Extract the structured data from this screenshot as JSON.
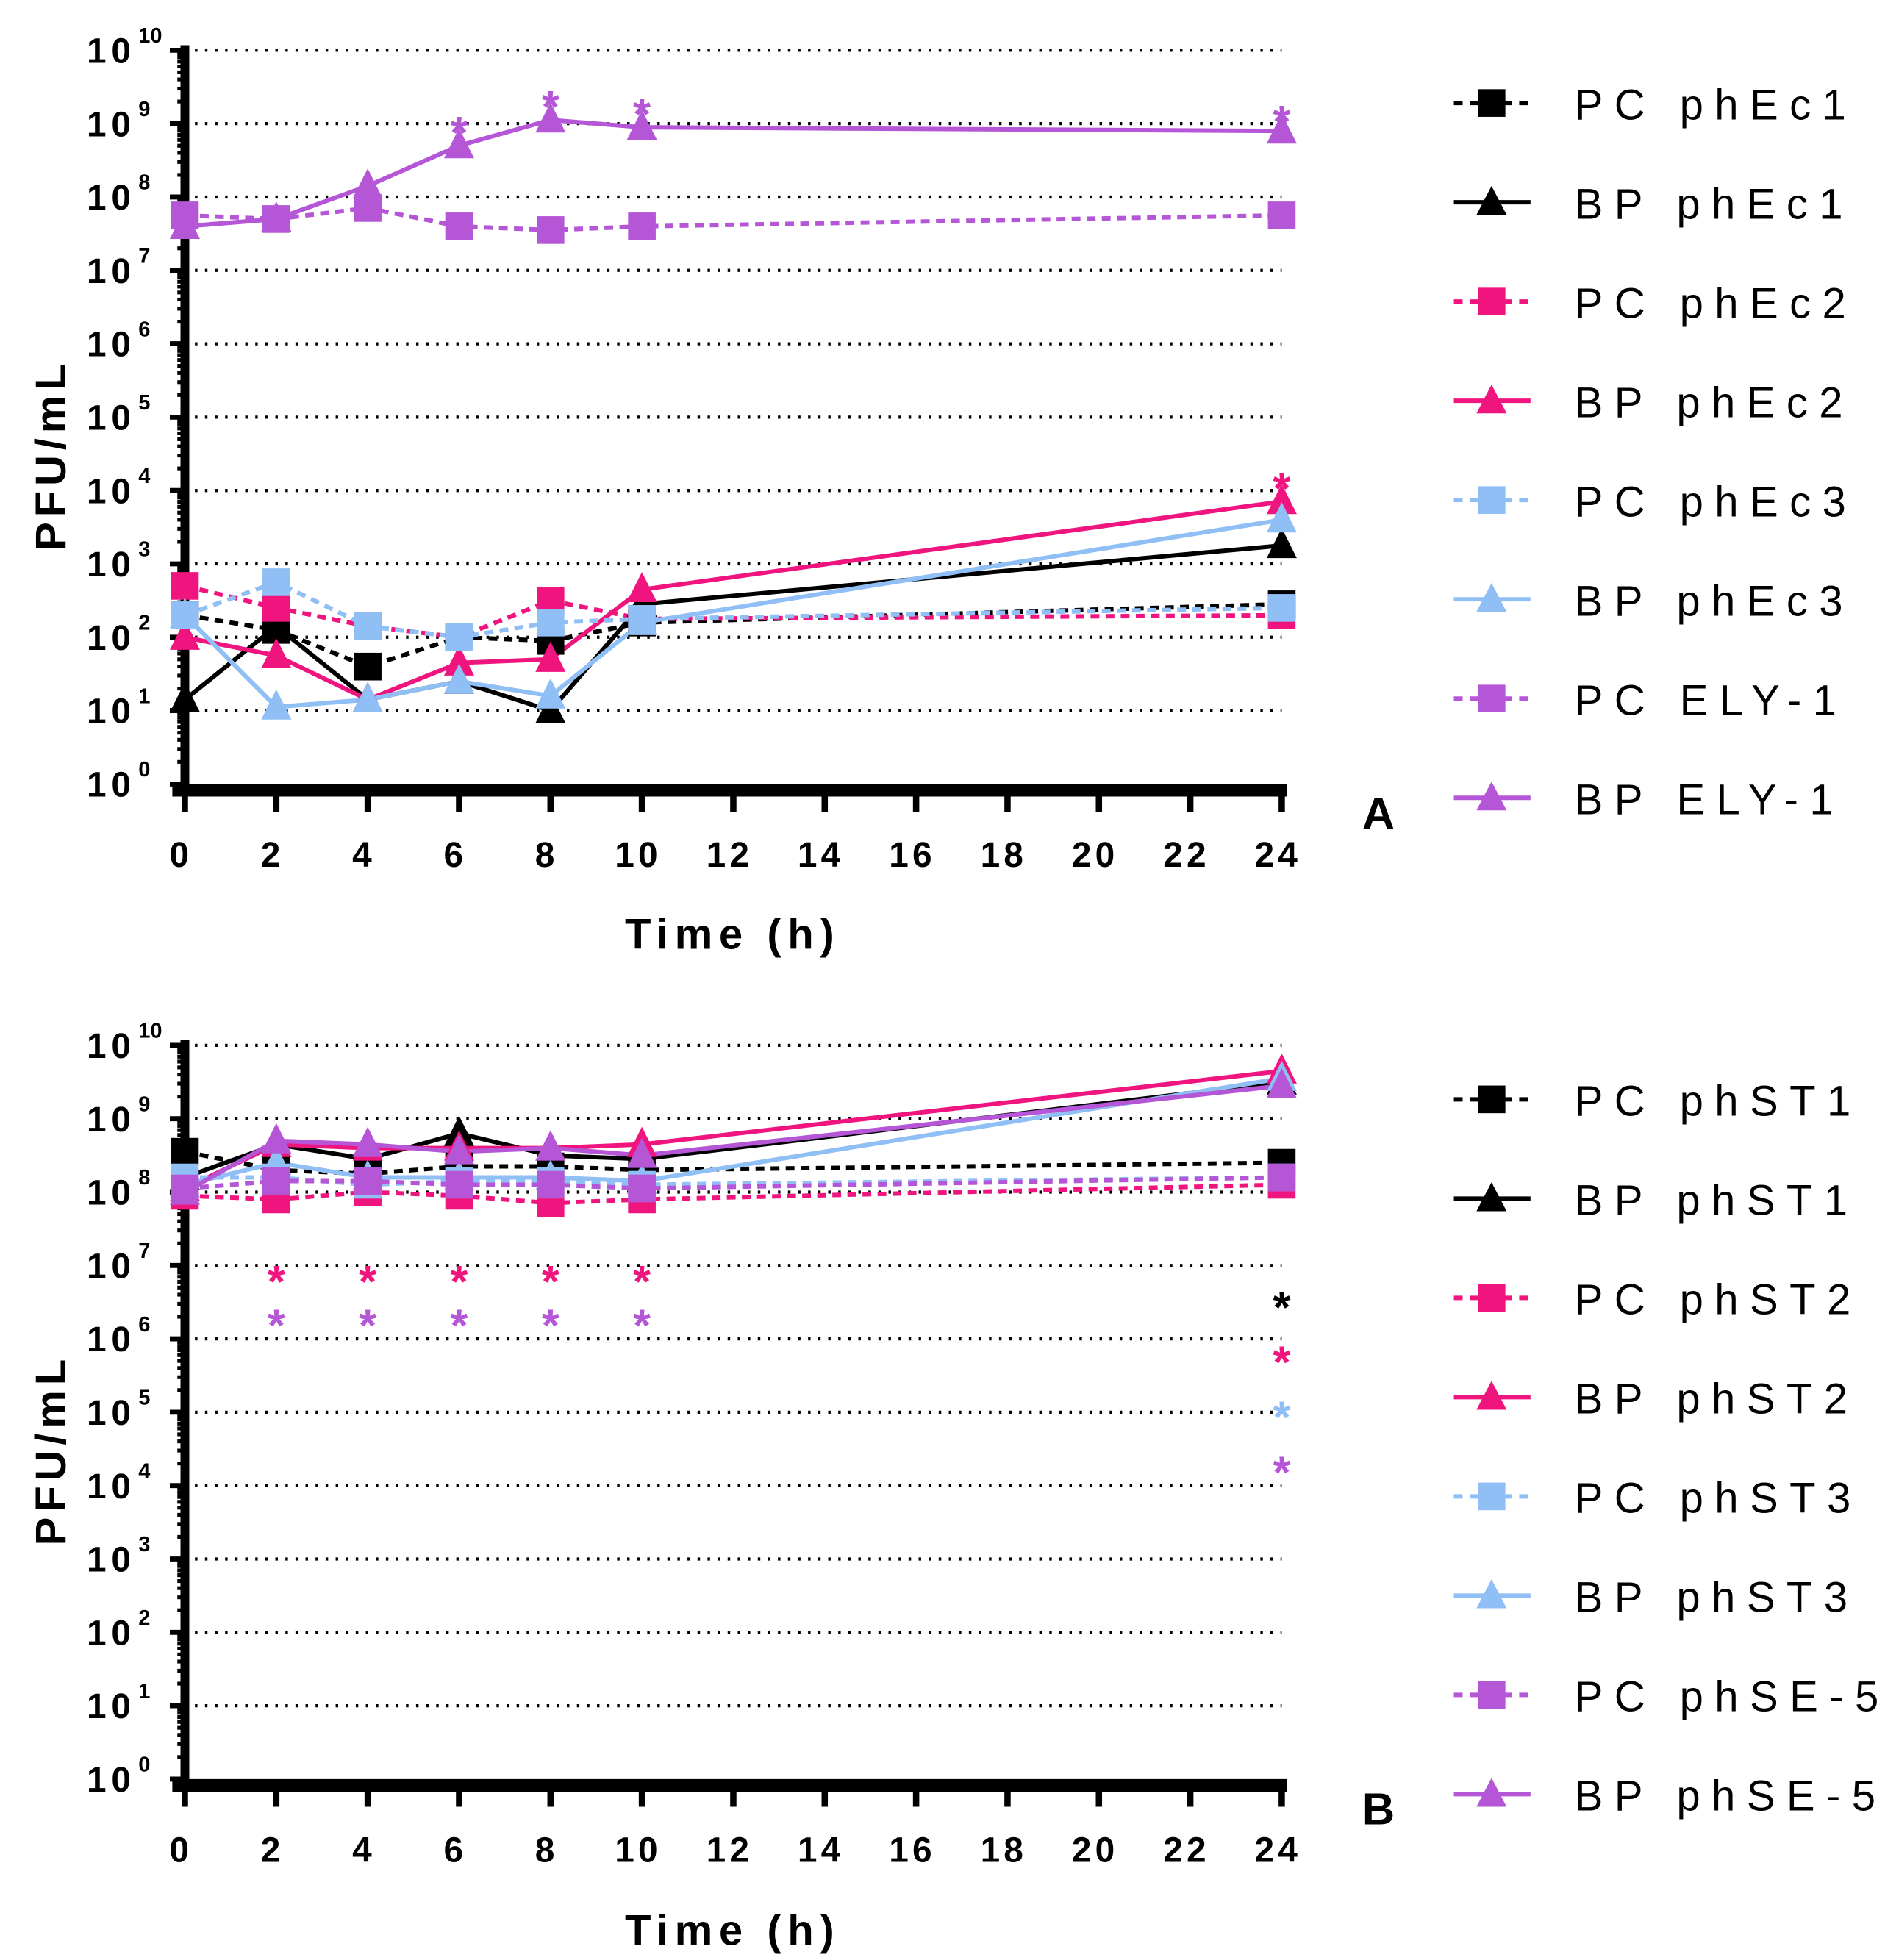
{
  "colors": {
    "black": "#000000",
    "pink": "#f0147f",
    "blue": "#8fbff5",
    "purple": "#b456d6"
  },
  "chart_data": [
    {
      "type": "line",
      "panel_label": "A",
      "xlabel": "Time (h)",
      "ylabel": "PFU/mL",
      "yscale": "log10",
      "ylim_exponent": [
        0,
        10
      ],
      "xlim": [
        0,
        24
      ],
      "x_ticks": [
        "0",
        "2",
        "4",
        "6",
        "8",
        "10",
        "12",
        "14",
        "16",
        "18",
        "20",
        "22",
        "24"
      ],
      "y_tick_base": "10",
      "y_tick_exponents": [
        "0",
        "1",
        "2",
        "3",
        "4",
        "5",
        "6",
        "7",
        "8",
        "9",
        "10"
      ],
      "grid": "horizontal dotted at each decade",
      "legend_placement": "right",
      "x": [
        0,
        2,
        4,
        6,
        8,
        10,
        24
      ],
      "series": [
        {
          "name": "PC phEc1",
          "color": "#000000",
          "marker": "square",
          "dashed": true,
          "log10_values": [
            2.3,
            2.1,
            1.6,
            2.0,
            1.95,
            2.2,
            2.45
          ]
        },
        {
          "name": "BP phEc1",
          "color": "#000000",
          "marker": "triangle",
          "dashed": false,
          "log10_values": [
            1.15,
            2.15,
            1.15,
            1.4,
            1.0,
            2.45,
            3.25
          ]
        },
        {
          "name": "PC phEc2",
          "color": "#f0147f",
          "marker": "square",
          "dashed": true,
          "log10_values": [
            2.7,
            2.4,
            2.15,
            2.0,
            2.5,
            2.25,
            2.3
          ]
        },
        {
          "name": "BP phEc2",
          "color": "#f0147f",
          "marker": "triangle",
          "dashed": false,
          "log10_values": [
            2.0,
            1.75,
            1.15,
            1.65,
            1.7,
            2.65,
            3.85
          ]
        },
        {
          "name": "PC phEc3",
          "color": "#8fbff5",
          "marker": "square",
          "dashed": true,
          "log10_values": [
            2.3,
            2.75,
            2.15,
            2.0,
            2.2,
            2.25,
            2.4
          ]
        },
        {
          "name": "BP phEc3",
          "color": "#8fbff5",
          "marker": "triangle",
          "dashed": false,
          "log10_values": [
            2.3,
            1.05,
            1.15,
            1.4,
            1.2,
            2.2,
            3.6
          ]
        },
        {
          "name": "PC ELY-1",
          "color": "#b456d6",
          "marker": "square",
          "dashed": true,
          "log10_values": [
            7.75,
            7.7,
            7.85,
            7.6,
            7.55,
            7.6,
            7.75
          ]
        },
        {
          "name": "BP ELY-1",
          "color": "#b456d6",
          "marker": "triangle",
          "dashed": false,
          "log10_values": [
            7.6,
            7.7,
            8.15,
            8.7,
            9.05,
            8.95,
            8.9
          ]
        }
      ],
      "annotations": [
        {
          "text": "*",
          "x": 6,
          "log10_y": 9.05,
          "color": "#b456d6"
        },
        {
          "text": "*",
          "x": 8,
          "log10_y": 9.4,
          "color": "#b456d6"
        },
        {
          "text": "*",
          "x": 10,
          "log10_y": 9.3,
          "color": "#b456d6"
        },
        {
          "text": "*",
          "x": 24,
          "log10_y": 9.2,
          "color": "#b456d6"
        },
        {
          "text": "*",
          "x": 24,
          "log10_y": 4.2,
          "color": "#f0147f"
        }
      ]
    },
    {
      "type": "line",
      "panel_label": "B",
      "xlabel": "Time (h)",
      "ylabel": "PFU/mL",
      "yscale": "log10",
      "ylim_exponent": [
        0,
        10
      ],
      "xlim": [
        0,
        24
      ],
      "x_ticks": [
        "0",
        "2",
        "4",
        "6",
        "8",
        "10",
        "12",
        "14",
        "16",
        "18",
        "20",
        "22",
        "24"
      ],
      "y_tick_base": "10",
      "y_tick_exponents": [
        "0",
        "1",
        "2",
        "3",
        "4",
        "5",
        "6",
        "7",
        "8",
        "9",
        "10"
      ],
      "grid": "horizontal dotted at each decade",
      "legend_placement": "right",
      "x": [
        0,
        2,
        4,
        6,
        8,
        10,
        24
      ],
      "series": [
        {
          "name": "PC phST1",
          "color": "#000000",
          "marker": "square",
          "dashed": true,
          "log10_values": [
            8.55,
            8.3,
            8.25,
            8.35,
            8.35,
            8.3,
            8.4
          ]
        },
        {
          "name": "BP phST1",
          "color": "#000000",
          "marker": "triangle",
          "dashed": false,
          "log10_values": [
            8.2,
            8.65,
            8.45,
            8.8,
            8.5,
            8.45,
            9.5
          ]
        },
        {
          "name": "PC phST2",
          "color": "#f0147f",
          "marker": "square",
          "dashed": true,
          "log10_values": [
            7.95,
            7.9,
            8.0,
            7.95,
            7.85,
            7.9,
            8.1
          ]
        },
        {
          "name": "BP phST2",
          "color": "#f0147f",
          "marker": "triangle",
          "dashed": false,
          "log10_values": [
            8.05,
            8.65,
            8.6,
            8.6,
            8.6,
            8.65,
            9.65
          ]
        },
        {
          "name": "PC phST3",
          "color": "#8fbff5",
          "marker": "square",
          "dashed": true,
          "log10_values": [
            8.2,
            8.2,
            8.1,
            8.15,
            8.15,
            8.1,
            8.2
          ]
        },
        {
          "name": "BP phST3",
          "color": "#8fbff5",
          "marker": "triangle",
          "dashed": false,
          "log10_values": [
            8.1,
            8.4,
            8.2,
            8.2,
            8.2,
            8.15,
            9.55
          ]
        },
        {
          "name": "PC phSE-5",
          "color": "#b456d6",
          "marker": "square",
          "dashed": true,
          "log10_values": [
            8.05,
            8.15,
            8.15,
            8.1,
            8.1,
            8.05,
            8.2
          ]
        },
        {
          "name": "BP phSE-5",
          "color": "#b456d6",
          "marker": "triangle",
          "dashed": false,
          "log10_values": [
            8.0,
            8.7,
            8.65,
            8.55,
            8.6,
            8.5,
            9.45
          ]
        }
      ],
      "annotations": [
        {
          "text": "*",
          "x": 2,
          "log10_y": 6.95,
          "color": "#f0147f"
        },
        {
          "text": "*",
          "x": 4,
          "log10_y": 6.95,
          "color": "#f0147f"
        },
        {
          "text": "*",
          "x": 6,
          "log10_y": 6.95,
          "color": "#f0147f"
        },
        {
          "text": "*",
          "x": 8,
          "log10_y": 6.95,
          "color": "#f0147f"
        },
        {
          "text": "*",
          "x": 10,
          "log10_y": 6.95,
          "color": "#f0147f"
        },
        {
          "text": "*",
          "x": 2,
          "log10_y": 6.35,
          "color": "#b456d6"
        },
        {
          "text": "*",
          "x": 4,
          "log10_y": 6.35,
          "color": "#b456d6"
        },
        {
          "text": "*",
          "x": 6,
          "log10_y": 6.35,
          "color": "#b456d6"
        },
        {
          "text": "*",
          "x": 8,
          "log10_y": 6.35,
          "color": "#b456d6"
        },
        {
          "text": "*",
          "x": 10,
          "log10_y": 6.35,
          "color": "#b456d6"
        },
        {
          "text": "*",
          "x": 24,
          "log10_y": 6.6,
          "color": "#000000"
        },
        {
          "text": "*",
          "x": 24,
          "log10_y": 5.85,
          "color": "#f0147f"
        },
        {
          "text": "*",
          "x": 24,
          "log10_y": 5.1,
          "color": "#8fbff5"
        },
        {
          "text": "*",
          "x": 24,
          "log10_y": 4.35,
          "color": "#b456d6"
        }
      ]
    }
  ]
}
